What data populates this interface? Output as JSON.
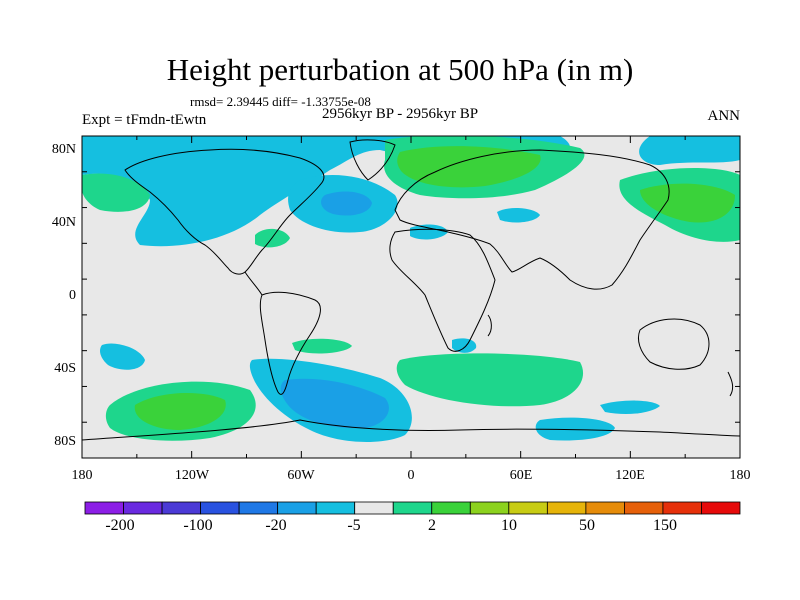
{
  "title": "Height perturbation at 500 hPa (in m)",
  "stats": "rmsd= 2.39445 diff= -1.33755e-08",
  "period": "2956kyr BP - 2956kyr BP",
  "experiment": "Expt = tFmdn-tEwtn",
  "season": "ANN",
  "y_ticks": [
    "80N",
    "40N",
    "0",
    "40S",
    "80S"
  ],
  "x_ticks": [
    "180",
    "120W",
    "60W",
    "0",
    "60E",
    "120E",
    "180"
  ],
  "colorbar": {
    "labels": [
      "-200",
      "-100",
      "-20",
      "-5",
      "2",
      "10",
      "50",
      "150"
    ],
    "colors": [
      "#8c1ee6",
      "#6a2ae0",
      "#4b3ad6",
      "#2952e0",
      "#1f78e6",
      "#1aa0e6",
      "#15bfe0",
      "#e8e8e8",
      "#1ed68c",
      "#3ad23a",
      "#8cd21e",
      "#c8cc14",
      "#e6b40a",
      "#e68c0a",
      "#e6600a",
      "#e6300a",
      "#e60a0a"
    ]
  },
  "field_colors": {
    "neutral": "#e8e8e8",
    "neg_light": "#15bfe0",
    "neg_mid": "#1aa0e6",
    "pos_light": "#1ed68c",
    "pos_mid": "#3ad23a"
  }
}
